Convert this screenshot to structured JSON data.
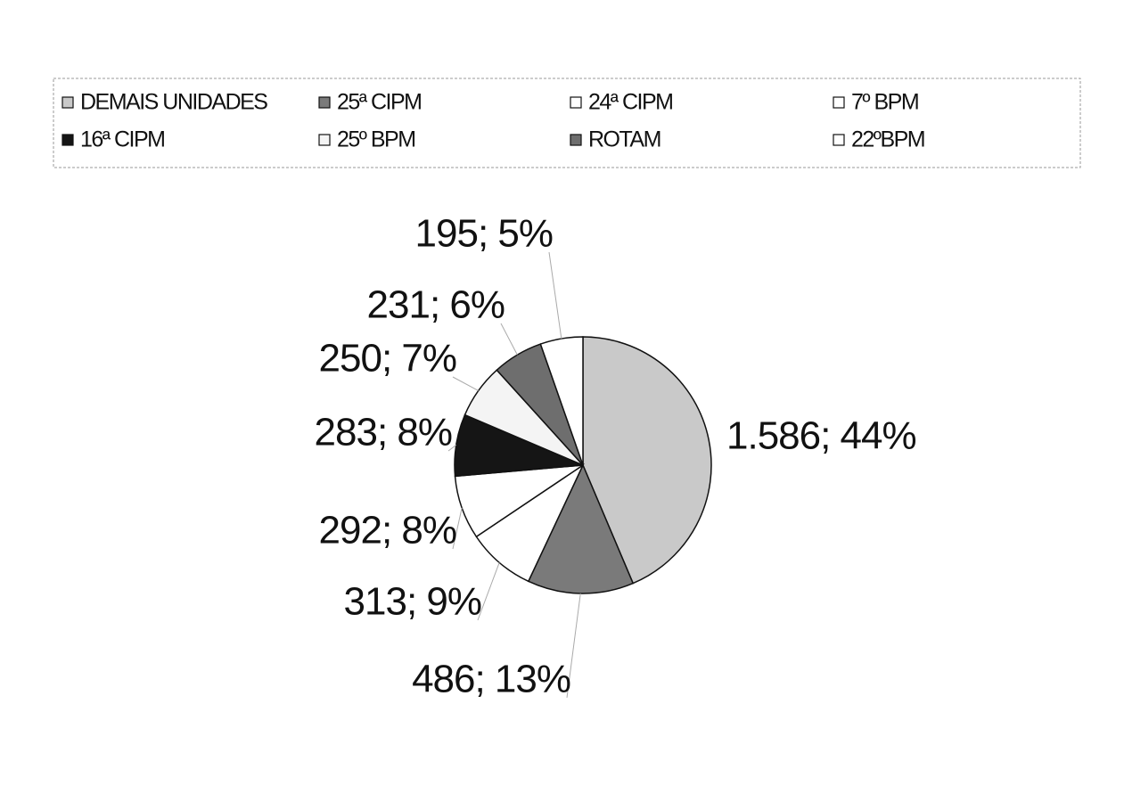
{
  "chart_data": {
    "type": "pie",
    "categories": [
      "DEMAIS UNIDADES",
      "25ª CIPM",
      "24ª CIPM",
      "7º BPM",
      "16ª CIPM",
      "25º BPM",
      "ROTAM",
      "22ºBPM"
    ],
    "values": [
      1586,
      486,
      313,
      292,
      283,
      250,
      231,
      195
    ],
    "value_labels": [
      "1.586; 44%",
      "486; 13%",
      "313; 9%",
      "292; 8%",
      "283; 8%",
      "250; 7%",
      "231; 6%",
      "195; 5%"
    ],
    "colors": [
      "#c9c9c9",
      "#7a7a7a",
      "#ffffff",
      "#ffffff",
      "#151515",
      "#f4f4f4",
      "#6e6e6e",
      "#ffffff"
    ],
    "legend": "top"
  }
}
